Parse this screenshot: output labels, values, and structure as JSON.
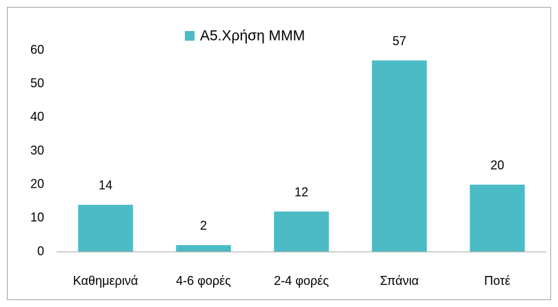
{
  "chart_data": {
    "type": "bar",
    "categories": [
      "Καθημερινά",
      "4-6 φορές",
      "2-4 φορές",
      "Σπάνια",
      "Ποτέ"
    ],
    "series": [
      {
        "name": "Α5.Χρήση ΜΜΜ",
        "color": "#4bbbc5",
        "values": [
          14,
          2,
          12,
          57,
          20
        ]
      }
    ],
    "ylim": [
      0,
      60
    ],
    "yticks": [
      0,
      10,
      20,
      30,
      40,
      50,
      60
    ],
    "grid": false,
    "legend": "top"
  }
}
